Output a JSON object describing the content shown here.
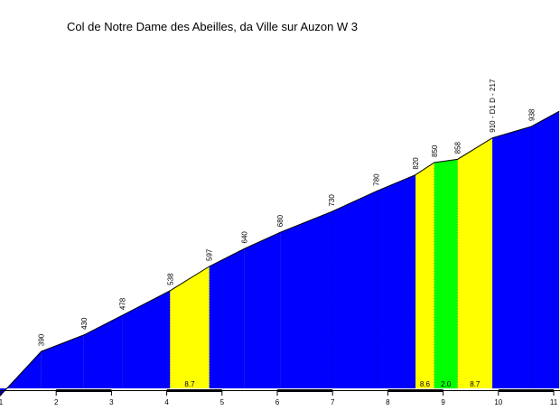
{
  "chart_data": {
    "type": "area",
    "title": "Col de Notre Dame des Abeilles, da Ville sur Auzon W 3",
    "xlabel": "",
    "ylabel": "",
    "xlim": [
      0.97,
      11.1
    ],
    "ylim": [
      0,
      1000
    ],
    "x_ticks": [
      1,
      2,
      3,
      4,
      5,
      6,
      7,
      8,
      9,
      10,
      11
    ],
    "profile": [
      {
        "x": 0.97,
        "y": 280,
        "label": ""
      },
      {
        "x": 1.73,
        "y": 390,
        "label": "390"
      },
      {
        "x": 2.5,
        "y": 430,
        "label": "430"
      },
      {
        "x": 3.2,
        "y": 478,
        "label": "478"
      },
      {
        "x": 4.06,
        "y": 538,
        "label": "538"
      },
      {
        "x": 4.77,
        "y": 597,
        "label": "597"
      },
      {
        "x": 5.4,
        "y": 640,
        "label": "640"
      },
      {
        "x": 6.05,
        "y": 680,
        "label": "680"
      },
      {
        "x": 6.98,
        "y": 730,
        "label": "730"
      },
      {
        "x": 7.79,
        "y": 780,
        "label": "780"
      },
      {
        "x": 8.5,
        "y": 820,
        "label": "820"
      },
      {
        "x": 8.84,
        "y": 850,
        "label": "850"
      },
      {
        "x": 9.26,
        "y": 858,
        "label": "858"
      },
      {
        "x": 9.89,
        "y": 910,
        "label": "910 - D1 D - 217"
      },
      {
        "x": 10.6,
        "y": 938,
        "label": "938"
      },
      {
        "x": 11.1,
        "y": 975,
        "label": ""
      }
    ],
    "segments": [
      {
        "x0": 0.97,
        "x1": 1.73,
        "gradient": "",
        "color": "#0000ff"
      },
      {
        "x0": 1.73,
        "x1": 2.5,
        "gradient": "",
        "color": "#0000ff"
      },
      {
        "x0": 2.5,
        "x1": 3.2,
        "gradient": "",
        "color": "#0000ff"
      },
      {
        "x0": 3.2,
        "x1": 4.06,
        "gradient": "",
        "color": "#0000ff"
      },
      {
        "x0": 4.06,
        "x1": 4.77,
        "gradient": "8.7",
        "color": "#ffff00"
      },
      {
        "x0": 4.77,
        "x1": 5.4,
        "gradient": "",
        "color": "#0000ff"
      },
      {
        "x0": 5.4,
        "x1": 6.05,
        "gradient": "",
        "color": "#0000ff"
      },
      {
        "x0": 6.05,
        "x1": 6.98,
        "gradient": "",
        "color": "#0000ff"
      },
      {
        "x0": 6.98,
        "x1": 7.79,
        "gradient": "",
        "color": "#0000ff"
      },
      {
        "x0": 7.79,
        "x1": 8.5,
        "gradient": "",
        "color": "#0000ff"
      },
      {
        "x0": 8.5,
        "x1": 8.84,
        "gradient": "8.6",
        "color": "#ffff00"
      },
      {
        "x0": 8.84,
        "x1": 9.26,
        "gradient": "2.0",
        "color": "#00ff00"
      },
      {
        "x0": 9.26,
        "x1": 9.89,
        "gradient": "8.7",
        "color": "#ffff00"
      },
      {
        "x0": 9.89,
        "x1": 10.6,
        "gradient": "",
        "color": "#0000ff"
      },
      {
        "x0": 10.6,
        "x1": 11.1,
        "gradient": "",
        "color": "#0000ff"
      }
    ],
    "colors": {
      "blue": "#0000ff",
      "yellow": "#ffff00",
      "green": "#00ff00",
      "outline": "#000000"
    }
  }
}
